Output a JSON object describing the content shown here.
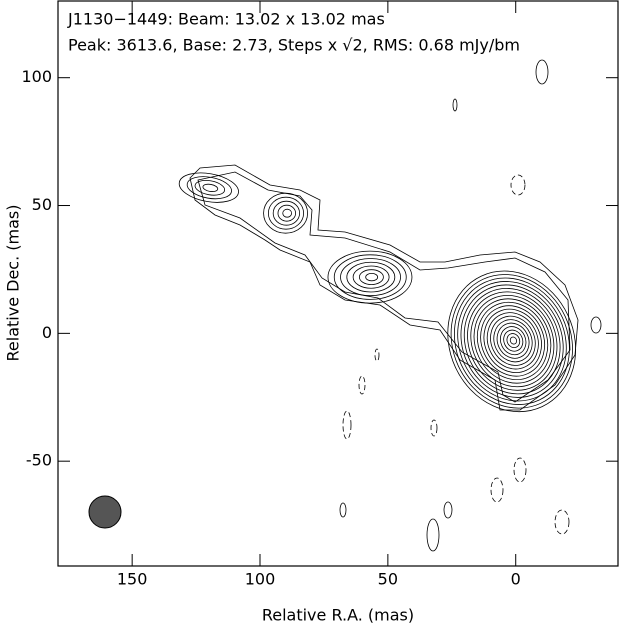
{
  "chart_data": {
    "type": "contour",
    "title": "J1130−1449: Beam: 13.02 x 13.02 mas",
    "subtitle": "Peak: 3613.6, Base: 2.73, Steps x √2, RMS: 0.68 mJy/bm",
    "xlabel": "Relative R.A. (mas)",
    "ylabel": "Relative Dec. (mas)",
    "xlim": [
      179,
      -40
    ],
    "xticks": [
      150,
      100,
      50,
      0
    ],
    "ylim": [
      -91,
      130
    ],
    "yticks": [
      100,
      50,
      0,
      -50
    ]
  }
}
